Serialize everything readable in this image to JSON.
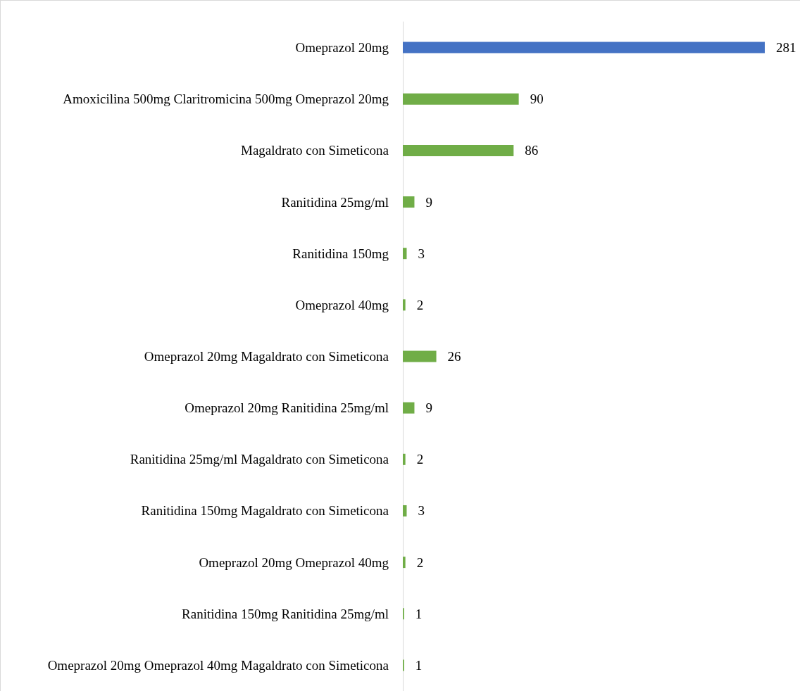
{
  "chart_data": {
    "type": "bar",
    "orientation": "horizontal",
    "categories": [
      "Omeprazol 20mg",
      "Amoxicilina 500mg Claritromicina 500mg Omeprazol 20mg",
      "Magaldrato con Simeticona",
      "Ranitidina 25mg/ml",
      "Ranitidina 150mg",
      "Omeprazol 40mg",
      "Omeprazol 20mg Magaldrato con Simeticona",
      "Omeprazol 20mg Ranitidina 25mg/ml",
      "Ranitidina 25mg/ml Magaldrato con Simeticona",
      "Ranitidina 150mg Magaldrato con Simeticona",
      "Omeprazol 20mg Omeprazol 40mg",
      "Ranitidina 150mg Ranitidina 25mg/ml",
      "Omeprazol 20mg Omeprazol 40mg Magaldrato con Simeticona"
    ],
    "values": [
      281,
      90,
      86,
      9,
      3,
      2,
      26,
      9,
      2,
      3,
      2,
      1,
      1
    ],
    "colors": [
      "#4472c4",
      "#70ad47",
      "#70ad47",
      "#70ad47",
      "#70ad47",
      "#70ad47",
      "#70ad47",
      "#70ad47",
      "#70ad47",
      "#70ad47",
      "#70ad47",
      "#70ad47",
      "#70ad47"
    ],
    "data_labels": true,
    "tick_labels": "y"
  }
}
